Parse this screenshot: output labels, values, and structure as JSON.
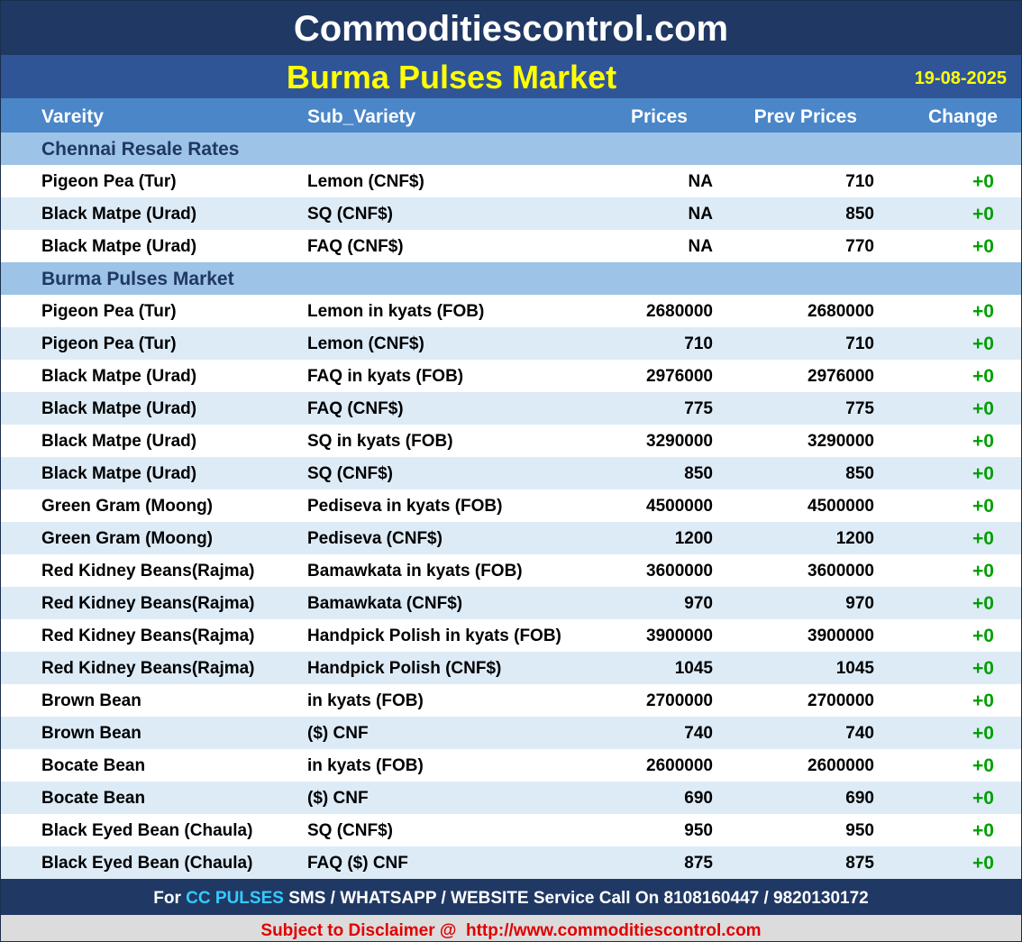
{
  "header": {
    "site": "Commoditiescontrol.com",
    "title": "Burma Pulses Market",
    "date": "19-08-2025"
  },
  "table": {
    "columns": [
      "Vareity",
      "Sub_Variety",
      "Prices",
      "Prev Prices",
      "Change"
    ],
    "sections": [
      {
        "title": "Chennai Resale Rates",
        "rows": [
          [
            "Pigeon Pea (Tur)",
            "Lemon (CNF$)",
            "NA",
            710,
            "+0"
          ],
          [
            "Black Matpe (Urad)",
            "SQ (CNF$)",
            "NA",
            850,
            "+0"
          ],
          [
            "Black Matpe (Urad)",
            "FAQ (CNF$)",
            "NA",
            770,
            "+0"
          ]
        ]
      },
      {
        "title": "Burma Pulses Market",
        "rows": [
          [
            "Pigeon Pea (Tur)",
            "Lemon in kyats (FOB)",
            2680000,
            2680000,
            "+0"
          ],
          [
            "Pigeon Pea (Tur)",
            "Lemon (CNF$)",
            710,
            710,
            "+0"
          ],
          [
            "Black Matpe (Urad)",
            "FAQ in kyats (FOB)",
            2976000,
            2976000,
            "+0"
          ],
          [
            "Black Matpe (Urad)",
            "FAQ (CNF$)",
            775,
            775,
            "+0"
          ],
          [
            "Black Matpe (Urad)",
            "SQ in kyats (FOB)",
            3290000,
            3290000,
            "+0"
          ],
          [
            "Black Matpe (Urad)",
            "SQ (CNF$)",
            850,
            850,
            "+0"
          ],
          [
            "Green Gram (Moong)",
            "Pediseva in kyats (FOB)",
            4500000,
            4500000,
            "+0"
          ],
          [
            "Green Gram (Moong)",
            "Pediseva (CNF$)",
            1200,
            1200,
            "+0"
          ],
          [
            "Red Kidney Beans(Rajma)",
            "Bamawkata in kyats (FOB)",
            3600000,
            3600000,
            "+0"
          ],
          [
            "Red Kidney Beans(Rajma)",
            "Bamawkata (CNF$)",
            970,
            970,
            "+0"
          ],
          [
            "Red Kidney Beans(Rajma)",
            "Handpick Polish in kyats (FOB)",
            3900000,
            3900000,
            "+0"
          ],
          [
            "Red Kidney Beans(Rajma)",
            "Handpick Polish (CNF$)",
            1045,
            1045,
            "+0"
          ],
          [
            "Brown Bean",
            "in kyats (FOB)",
            2700000,
            2700000,
            "+0"
          ],
          [
            "Brown Bean",
            "($) CNF",
            740,
            740,
            "+0"
          ],
          [
            "Bocate Bean",
            "in kyats (FOB)",
            2600000,
            2600000,
            "+0"
          ],
          [
            "Bocate Bean",
            "($) CNF",
            690,
            690,
            "+0"
          ],
          [
            "Black Eyed Bean (Chaula)",
            "SQ (CNF$)",
            950,
            950,
            "+0"
          ],
          [
            "Black Eyed Bean (Chaula)",
            "FAQ ($) CNF",
            875,
            875,
            "+0"
          ]
        ]
      }
    ]
  },
  "footer": {
    "prefix": "For",
    "highlight": "CC PULSES",
    "text": "SMS / WHATSAPP / WEBSITE Service Call On 8108160447 / 9820130172",
    "disclaimer": "Subject to Disclaimer @  http://www.commoditiescontrol.com"
  }
}
